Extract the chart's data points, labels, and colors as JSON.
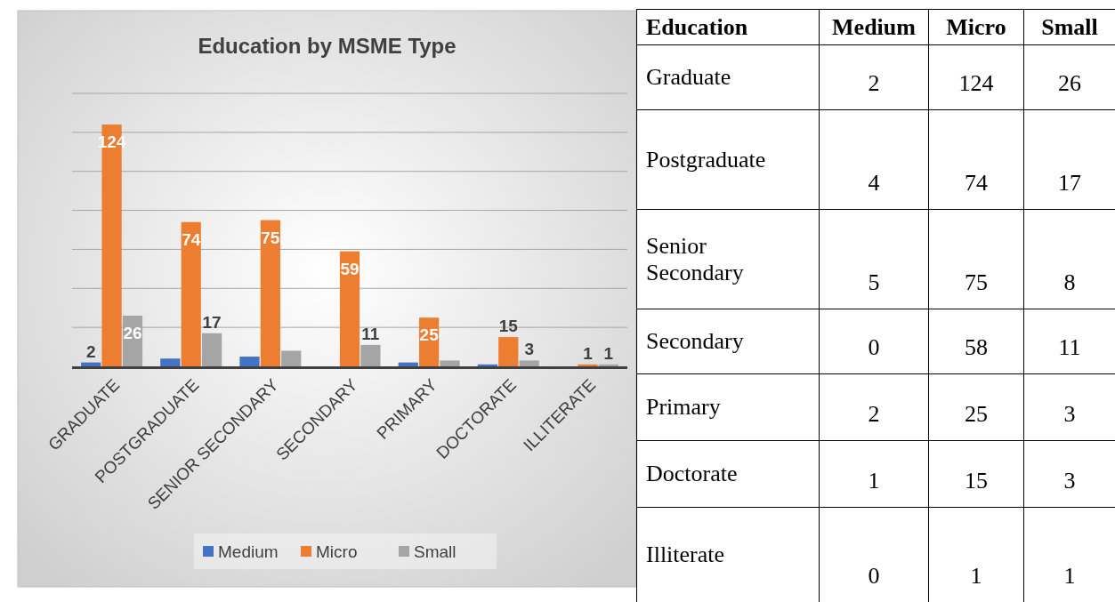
{
  "chart_data": [
    {
      "type": "bar",
      "title": "Education by MSME Type",
      "categories": [
        "GRADUATE",
        "POSTGRADUATE",
        "SENIOR SECONDARY",
        "SECONDARY",
        "PRIMARY",
        "DOCTORATE",
        "ILLITERATE"
      ],
      "series": [
        {
          "name": "Medium",
          "color": "#4472c4",
          "values": [
            2,
            4,
            5,
            0,
            2,
            1,
            0
          ],
          "value_labels": [
            "2",
            null,
            null,
            null,
            null,
            null,
            null
          ]
        },
        {
          "name": "Micro",
          "color": "#ed7d31",
          "values": [
            124,
            74,
            75,
            59,
            25,
            15,
            1
          ],
          "value_labels": [
            "124",
            "74",
            "75",
            "59",
            "25",
            "15",
            "1"
          ]
        },
        {
          "name": "Small",
          "color": "#a5a5a5",
          "values": [
            26,
            17,
            8,
            11,
            3,
            3,
            1
          ],
          "value_labels": [
            "26",
            "17",
            null,
            "11",
            null,
            "3",
            "1"
          ]
        }
      ],
      "ylim": [
        0,
        140
      ],
      "yticks": [
        {
          "value": 0,
          "label": null
        },
        {
          "value": 20,
          "label": null
        },
        {
          "value": 40,
          "label": null
        },
        {
          "value": 60,
          "label": null
        },
        {
          "value": 80,
          "label": null
        },
        {
          "value": 100,
          "label": null
        },
        {
          "value": 120,
          "label": null
        },
        {
          "value": 140,
          "label": null
        }
      ],
      "tick_labels": "x",
      "grid": "y",
      "legend": "bottom"
    },
    {
      "type": "other",
      "ylabel": "Education",
      "categories": [
        "Graduate",
        "Postgraduate",
        "Senior Secondary",
        "Secondary",
        "Primary",
        "Doctorate",
        "Illiterate"
      ],
      "data_labels": true,
      "series": [
        {
          "name": "Medium",
          "values": [
            2,
            4,
            5,
            0,
            2,
            1,
            0
          ]
        },
        {
          "name": "Micro",
          "values": [
            124,
            74,
            75,
            58,
            25,
            15,
            1
          ]
        },
        {
          "name": "Small",
          "values": [
            26,
            17,
            8,
            11,
            3,
            3,
            1
          ]
        }
      ]
    }
  ]
}
